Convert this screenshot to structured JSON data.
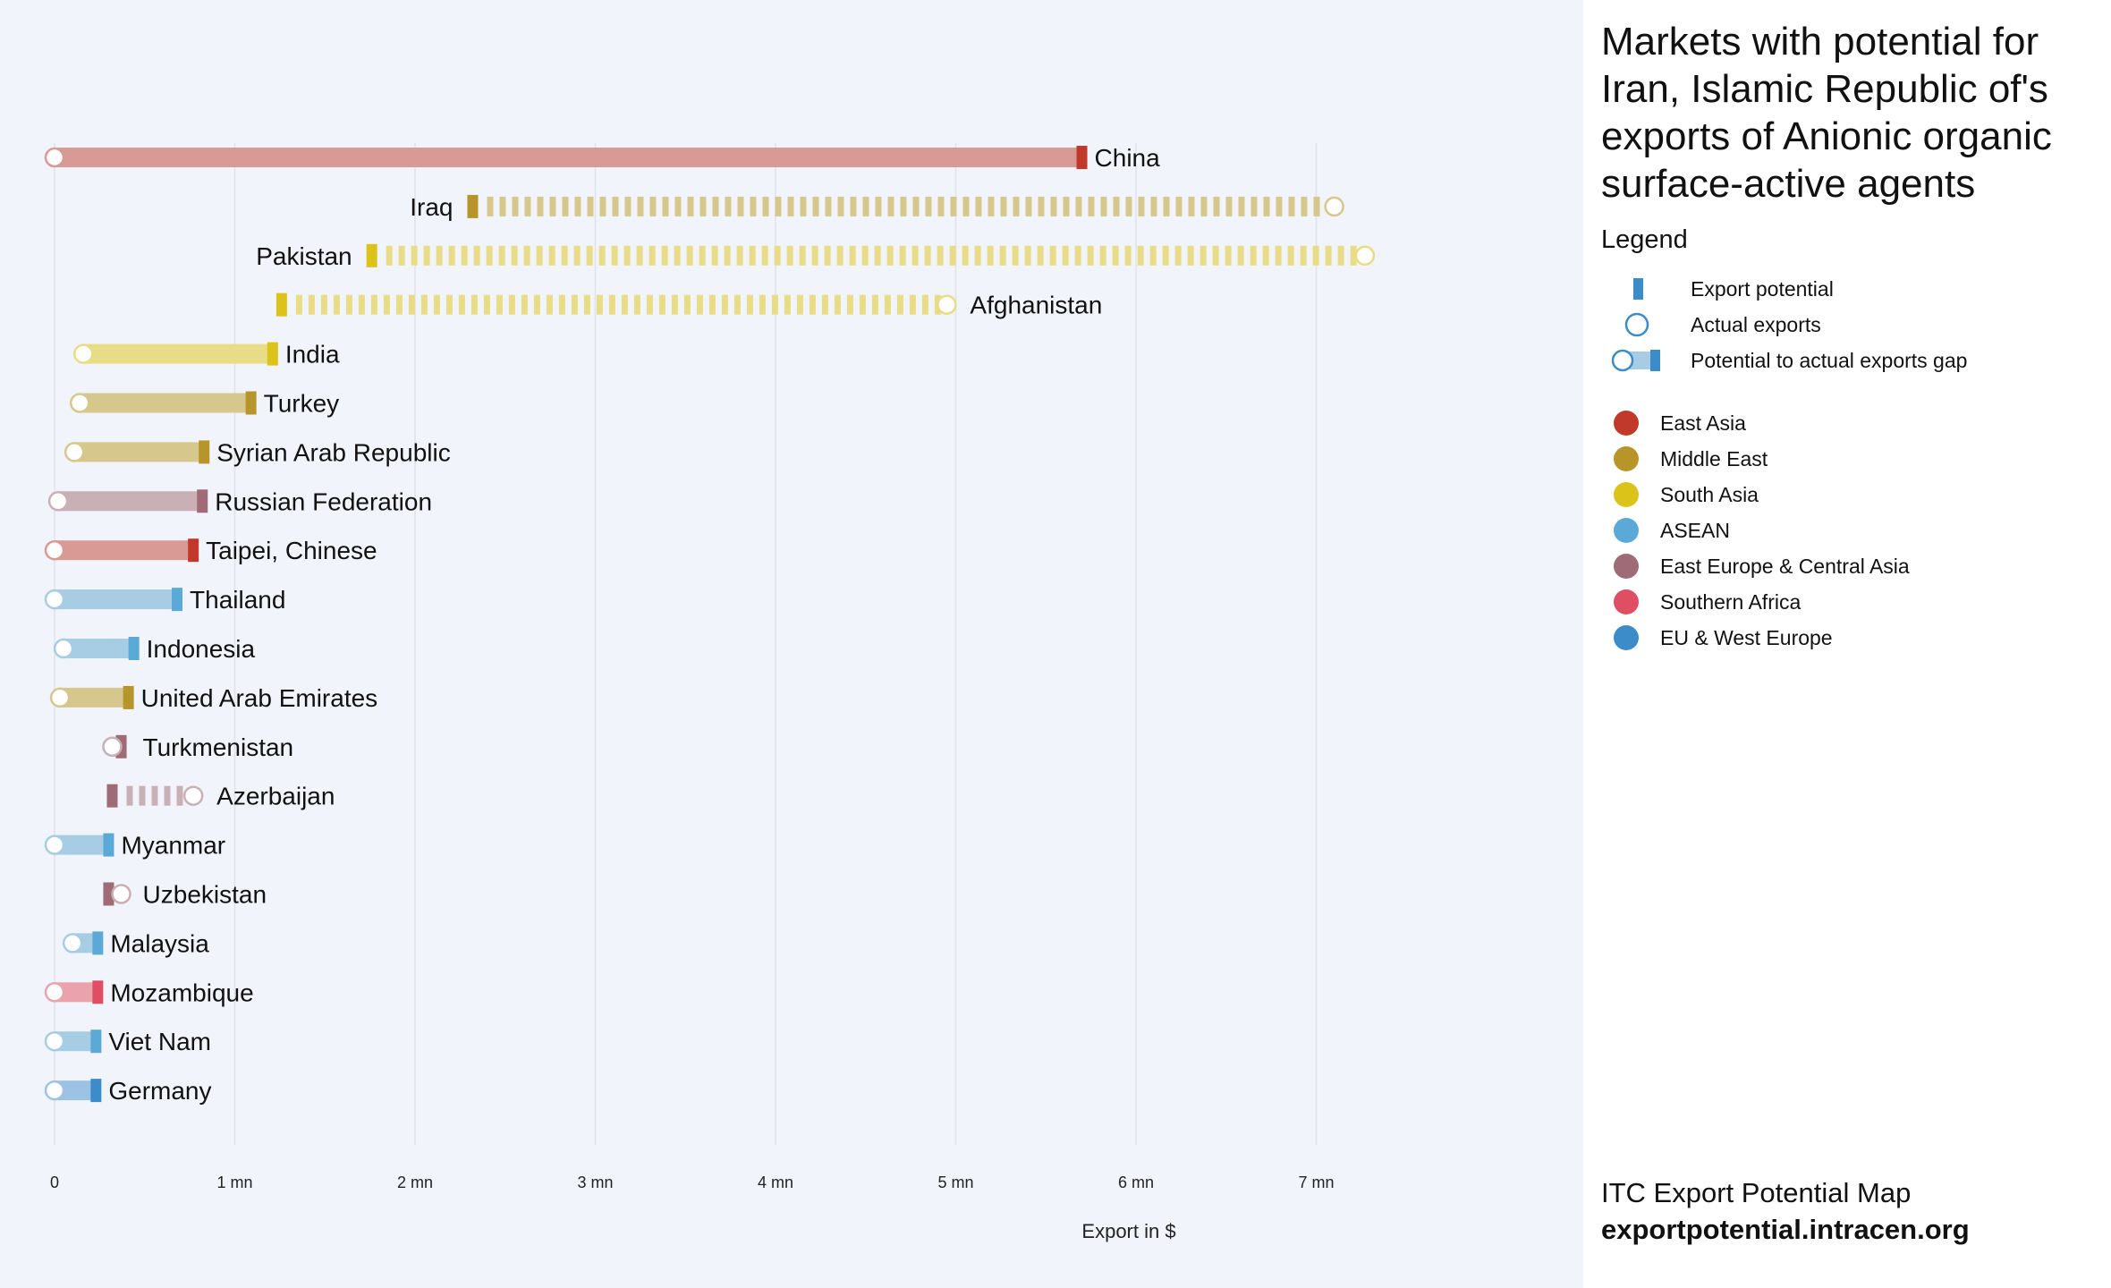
{
  "chart_data": {
    "type": "dumbbell",
    "title": "Markets with potential for Iran, Islamic Republic of's exports of Anionic organic surface-active agents",
    "xlabel": "Export in $",
    "xlim": [
      0,
      7500000
    ],
    "ticks": [
      {
        "value": 0,
        "label": "0"
      },
      {
        "value": 1000000,
        "label": "1 mn"
      },
      {
        "value": 2000000,
        "label": "2 mn"
      },
      {
        "value": 3000000,
        "label": "3 mn"
      },
      {
        "value": 4000000,
        "label": "4 mn"
      },
      {
        "value": 5000000,
        "label": "5 mn"
      },
      {
        "value": 6000000,
        "label": "6 mn"
      },
      {
        "value": 7000000,
        "label": "7 mn"
      }
    ],
    "series": [
      {
        "country": "China",
        "region": "East Asia",
        "actual": 0,
        "potential": 5700000
      },
      {
        "country": "Iraq",
        "region": "Middle East",
        "actual": 7100000,
        "potential": 2320000
      },
      {
        "country": "Pakistan",
        "region": "South Asia",
        "actual": 7270000,
        "potential": 1760000
      },
      {
        "country": "Afghanistan",
        "region": "South Asia",
        "actual": 4950000,
        "potential": 1260000
      },
      {
        "country": "India",
        "region": "South Asia",
        "actual": 160000,
        "potential": 1210000
      },
      {
        "country": "Turkey",
        "region": "Middle East",
        "actual": 140000,
        "potential": 1090000
      },
      {
        "country": "Syrian Arab Republic",
        "region": "Middle East",
        "actual": 110000,
        "potential": 830000
      },
      {
        "country": "Russian Federation",
        "region": "East Europe & Central Asia",
        "actual": 20000,
        "potential": 820000
      },
      {
        "country": "Taipei, Chinese",
        "region": "East Asia",
        "actual": 0,
        "potential": 770000
      },
      {
        "country": "Thailand",
        "region": "ASEAN",
        "actual": 0,
        "potential": 680000
      },
      {
        "country": "Indonesia",
        "region": "ASEAN",
        "actual": 50000,
        "potential": 440000
      },
      {
        "country": "United Arab Emirates",
        "region": "Middle East",
        "actual": 30000,
        "potential": 410000
      },
      {
        "country": "Turkmenistan",
        "region": "East Europe & Central Asia",
        "actual": 320000,
        "potential": 370000
      },
      {
        "country": "Azerbaijan",
        "region": "East Europe & Central Asia",
        "actual": 770000,
        "potential": 320000
      },
      {
        "country": "Myanmar",
        "region": "ASEAN",
        "actual": 0,
        "potential": 300000
      },
      {
        "country": "Uzbekistan",
        "region": "East Europe & Central Asia",
        "actual": 370000,
        "potential": 300000
      },
      {
        "country": "Malaysia",
        "region": "ASEAN",
        "actual": 100000,
        "potential": 240000
      },
      {
        "country": "Mozambique",
        "region": "Southern Africa",
        "actual": 0,
        "potential": 240000
      },
      {
        "country": "Viet Nam",
        "region": "ASEAN",
        "actual": 0,
        "potential": 230000
      },
      {
        "country": "Germany",
        "region": "EU & West Europe",
        "actual": 0,
        "potential": 230000
      }
    ],
    "regions": [
      {
        "name": "East Asia",
        "color": "#c0392b",
        "light": "#d99a96"
      },
      {
        "name": "Middle East",
        "color": "#b7952a",
        "light": "#d6c78c"
      },
      {
        "name": "South Asia",
        "color": "#dcc31a",
        "light": "#e8dd86"
      },
      {
        "name": "ASEAN",
        "color": "#5aa9d6",
        "light": "#a6cde4"
      },
      {
        "name": "East Europe & Central Asia",
        "color": "#9e6b77",
        "light": "#c9b0b6"
      },
      {
        "name": "Southern Africa",
        "color": "#e04e63",
        "light": "#eaa2ad"
      },
      {
        "name": "EU & West Europe",
        "color": "#3b8cc9",
        "light": "#9cc3e3"
      }
    ]
  },
  "panel": {
    "title": "Markets with potential for Iran, Islamic Republic of's exports of Anionic organic surface-active agents",
    "legend_heading": "Legend",
    "legend_items": [
      {
        "label": "Export potential",
        "icon": "potential-bar-icon"
      },
      {
        "label": "Actual exports",
        "icon": "actual-circle-icon"
      },
      {
        "label": "Potential to actual exports gap",
        "icon": "gap-bar-icon"
      }
    ],
    "footer_line1": "ITC Export Potential Map",
    "footer_line2": "exportpotential.intracen.org"
  }
}
